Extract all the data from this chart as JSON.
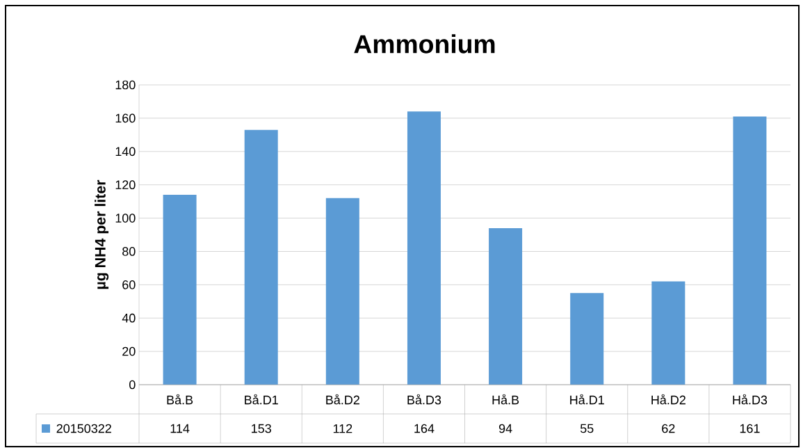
{
  "chart_data": {
    "type": "bar",
    "title": "Ammonium",
    "ylabel": "µg NH4 per liter",
    "categories": [
      "Bå.B",
      "Bå.D1",
      "Bå.D2",
      "Bå.D3",
      "Hå.B",
      "Hå.D1",
      "Hå.D2",
      "Hå.D3"
    ],
    "series": [
      {
        "name": "20150322",
        "color": "#5b9bd5",
        "values": [
          114,
          153,
          112,
          164,
          94,
          55,
          62,
          161
        ]
      }
    ],
    "ylim": [
      0,
      180
    ],
    "yticks": [
      0,
      20,
      40,
      60,
      80,
      100,
      120,
      140,
      160,
      180
    ],
    "grid": "y",
    "legend": "bottom",
    "data_labels": true
  }
}
